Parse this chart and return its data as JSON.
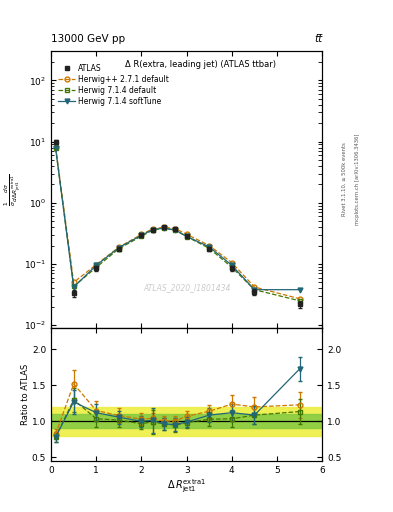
{
  "title_top": "13000 GeV pp",
  "title_top_right": "tt̅",
  "plot_title": "Δ R(extra, leading jet) (ATLAS ttbar)",
  "watermark": "ATLAS_2020_I1801434",
  "ylabel_main": "$\\frac{1}{\\sigma}\\frac{d\\sigma}{d\\Delta R_{\\mathrm{jet1}}^{\\mathrm{extra1}}}$",
  "ylabel_ratio": "Ratio to ATLAS",
  "right_label_top": "Rivet 3.1.10, ≥ 500k events",
  "right_label_bot": "mcplots.cern.ch [arXiv:1306.3436]",
  "xlim": [
    0,
    6
  ],
  "ylim_main": [
    0.009,
    300
  ],
  "ylim_ratio": [
    0.45,
    2.3
  ],
  "xticks_ratio": [
    0,
    1,
    2,
    3,
    4,
    5,
    6
  ],
  "atlas_x": [
    0.1,
    0.5,
    1.0,
    1.5,
    2.0,
    2.25,
    2.5,
    2.75,
    3.0,
    3.5,
    4.0,
    4.5,
    5.5
  ],
  "atlas_y": [
    10.0,
    0.033,
    0.085,
    0.175,
    0.295,
    0.36,
    0.4,
    0.375,
    0.285,
    0.175,
    0.085,
    0.035,
    0.022
  ],
  "atlas_yerr": [
    0.8,
    0.004,
    0.007,
    0.012,
    0.018,
    0.022,
    0.023,
    0.022,
    0.018,
    0.012,
    0.007,
    0.004,
    0.003
  ],
  "herwig271_y": [
    8.2,
    0.05,
    0.098,
    0.188,
    0.305,
    0.375,
    0.4,
    0.378,
    0.305,
    0.2,
    0.105,
    0.042,
    0.027
  ],
  "herwig714d_y": [
    7.8,
    0.043,
    0.088,
    0.178,
    0.285,
    0.358,
    0.385,
    0.355,
    0.28,
    0.18,
    0.088,
    0.038,
    0.025
  ],
  "herwig714s_y": [
    7.8,
    0.042,
    0.095,
    0.185,
    0.295,
    0.365,
    0.385,
    0.358,
    0.282,
    0.19,
    0.095,
    0.038,
    0.038
  ],
  "ratio_herwig271_y": [
    0.82,
    1.52,
    1.15,
    1.08,
    1.03,
    1.04,
    1.0,
    1.008,
    1.07,
    1.14,
    1.24,
    1.2,
    1.23
  ],
  "ratio_herwig714d_y": [
    0.78,
    1.3,
    1.035,
    1.017,
    0.966,
    0.994,
    0.963,
    0.947,
    0.982,
    1.029,
    1.035,
    1.086,
    1.136
  ],
  "ratio_herwig714s_y": [
    0.78,
    1.27,
    1.12,
    1.057,
    1.0,
    1.014,
    0.963,
    0.955,
    0.99,
    1.086,
    1.12,
    1.086,
    1.73
  ],
  "ratio_herwig271_yerr": [
    0.07,
    0.19,
    0.13,
    0.1,
    0.08,
    0.08,
    0.07,
    0.07,
    0.08,
    0.09,
    0.13,
    0.14,
    0.18
  ],
  "ratio_herwig714d_yerr": [
    0.07,
    0.17,
    0.12,
    0.09,
    0.075,
    0.17,
    0.09,
    0.09,
    0.075,
    0.1,
    0.12,
    0.13,
    0.17
  ],
  "ratio_herwig714s_yerr": [
    0.07,
    0.17,
    0.12,
    0.09,
    0.075,
    0.17,
    0.09,
    0.09,
    0.075,
    0.1,
    0.12,
    0.13,
    0.17
  ],
  "band_green_lo": 0.9,
  "band_green_hi": 1.1,
  "band_yellow_lo": 0.8,
  "band_yellow_hi": 1.2,
  "color_atlas": "#222222",
  "color_herwig271": "#cc7700",
  "color_herwig714d": "#447700",
  "color_herwig714s": "#226677",
  "color_band_green": "#88cc44",
  "color_band_yellow": "#eeee44"
}
